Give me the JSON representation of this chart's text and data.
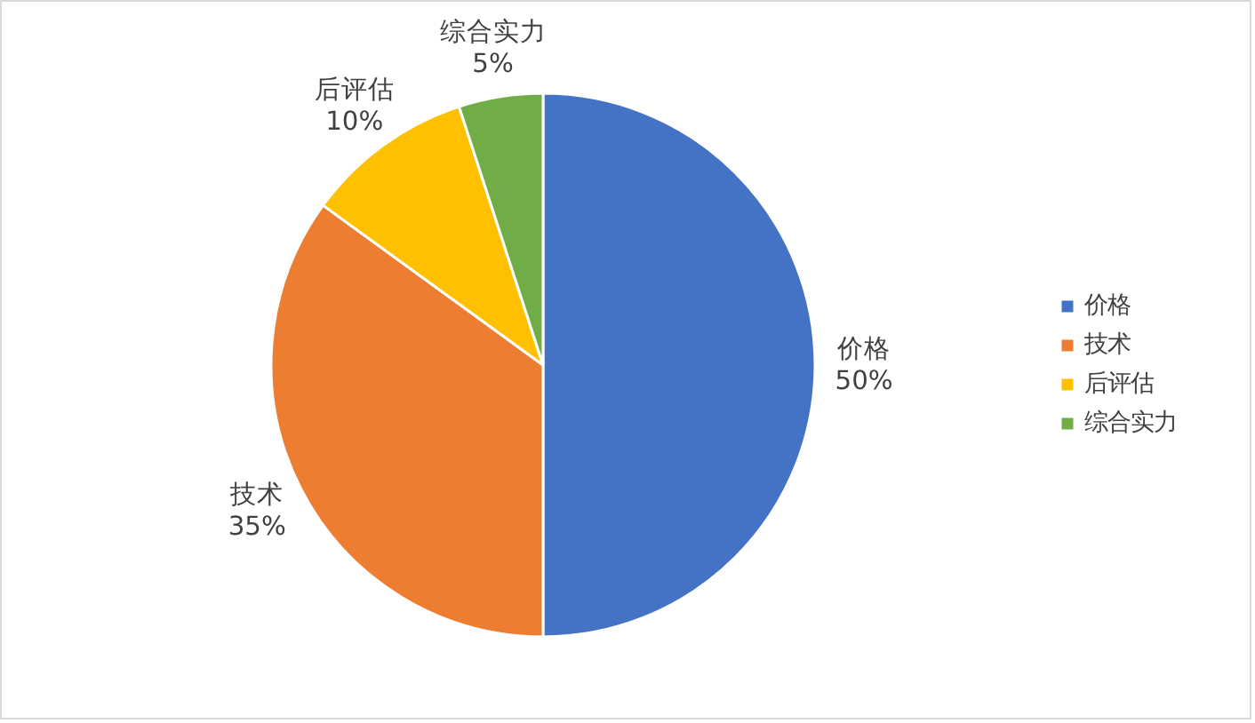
{
  "chart_data": {
    "type": "pie",
    "categories": [
      "价格",
      "技术",
      "后评估",
      "综合实力"
    ],
    "values": [
      50,
      35,
      10,
      5
    ],
    "colors": [
      "#4472c4",
      "#ed7d31",
      "#ffc000",
      "#70ad47"
    ],
    "value_labels": [
      "50%",
      "35%",
      "10%",
      "5%"
    ],
    "legend": "right"
  }
}
